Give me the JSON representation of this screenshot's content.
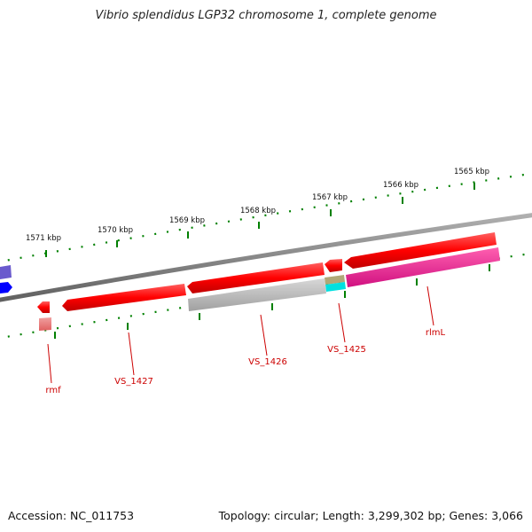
{
  "title": "Vibrio splendidus LGP32 chromosome 1, complete genome",
  "footer": {
    "accession": "Accession: NC_011753",
    "summary": "Topology: circular; Length: 3,299,302 bp; Genes: 3,066"
  },
  "ruler": {
    "ticks": [
      {
        "label": "1571 kbp"
      },
      {
        "label": "1570 kbp"
      },
      {
        "label": "1569 kbp"
      },
      {
        "label": "1568 kbp"
      },
      {
        "label": "1567 kbp"
      },
      {
        "label": "1566 kbp"
      },
      {
        "label": "1565 kbp"
      }
    ]
  },
  "genes": [
    {
      "label": "rmf"
    },
    {
      "label": "VS_1427"
    },
    {
      "label": "VS_1426"
    },
    {
      "label": "VS_1425"
    },
    {
      "label": "rlmL"
    }
  ],
  "colors": {
    "cds": "#ff0000",
    "cds_light": "#f08080",
    "gene_gray": "#b8b8b8",
    "tan": "#b0a878",
    "cyan": "#00e0e0",
    "magenta": "#ff1493",
    "blue": "#0000ff",
    "purple": "#6a5acd",
    "backbone": "#808080",
    "tick": "#008000",
    "label": "#cc0000"
  }
}
